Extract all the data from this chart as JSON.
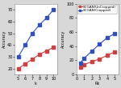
{
  "left": {
    "x": [
      5,
      6,
      7,
      8,
      9,
      10
    ],
    "y_uncropped": [
      20,
      24,
      28,
      32,
      35,
      38
    ],
    "y_cropped": [
      30,
      40,
      50,
      57,
      63,
      70
    ],
    "xlabel": "k",
    "ylabel": "Accuracy",
    "xlim": [
      4.5,
      10.5
    ],
    "ylim": [
      15,
      75
    ],
    "yticks": [
      20,
      30,
      40,
      50,
      60,
      70
    ],
    "xticks": [
      5,
      6,
      7,
      8,
      9,
      10
    ]
  },
  "right": {
    "x": [
      0.5,
      1,
      2,
      3,
      4,
      5
    ],
    "y_uncropped": [
      10,
      14,
      18,
      22,
      27,
      32
    ],
    "y_cropped": [
      16,
      23,
      33,
      43,
      52,
      58
    ],
    "xlabel": "Rk",
    "ylabel": "Accuracy",
    "xlim": [
      0,
      5.5
    ],
    "ylim": [
      0,
      100
    ],
    "yticks": [
      0,
      20,
      40,
      60,
      80,
      100
    ],
    "xticks": [
      0,
      1,
      2,
      3,
      4,
      5
    ]
  },
  "color_uncropped": "#d04040",
  "color_cropped": "#3050c0",
  "label_uncropped": "SCGAN(UnCropped)",
  "label_cropped": "SCGAN(Cropped)",
  "bg_color": "#ffffff",
  "fig_bg": "#d8d8d8",
  "marker": "s",
  "markersize": 2.5,
  "linewidth": 0.8,
  "fontsize": 3.5
}
